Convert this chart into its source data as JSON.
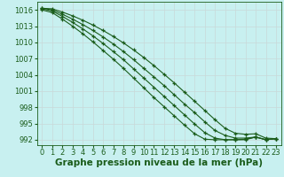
{
  "title": "Graphe pression niveau de la mer (hPa)",
  "bg_color": "#c8f0f0",
  "grid_color": "#aadddd",
  "line_color": "#1a5c1a",
  "marker_color": "#1a5c1a",
  "x_ticks": [
    0,
    1,
    2,
    3,
    4,
    5,
    6,
    7,
    8,
    9,
    10,
    11,
    12,
    13,
    14,
    15,
    16,
    17,
    18,
    19,
    20,
    21,
    22,
    23
  ],
  "y_ticks": [
    992,
    995,
    998,
    1001,
    1004,
    1007,
    1010,
    1013,
    1016
  ],
  "ylim": [
    991.0,
    1017.5
  ],
  "xlim": [
    -0.5,
    23.5
  ],
  "lines": [
    [
      1016.3,
      1016.2,
      1015.6,
      1014.9,
      1014.1,
      1013.2,
      1012.2,
      1011.1,
      1009.9,
      1008.6,
      1007.2,
      1005.7,
      1004.1,
      1002.5,
      1000.8,
      999.1,
      997.4,
      995.7,
      994.1,
      993.2,
      993.0,
      993.1,
      992.3,
      992.2
    ],
    [
      1016.3,
      1016.0,
      1015.2,
      1014.3,
      1013.3,
      1012.2,
      1011.0,
      1009.7,
      1008.3,
      1006.8,
      1005.2,
      1003.6,
      1002.0,
      1000.3,
      998.6,
      997.0,
      995.3,
      993.7,
      992.8,
      992.3,
      992.3,
      992.5,
      992.0,
      992.2
    ],
    [
      1016.2,
      1015.8,
      1014.8,
      1013.7,
      1012.5,
      1011.2,
      1009.8,
      1008.3,
      1006.8,
      1005.1,
      1003.4,
      1001.7,
      1000.0,
      998.3,
      996.6,
      994.9,
      993.3,
      992.3,
      992.0,
      992.0,
      992.1,
      992.5,
      992.0,
      992.2
    ],
    [
      1016.0,
      1015.5,
      1014.3,
      1013.0,
      1011.6,
      1010.1,
      1008.5,
      1006.9,
      1005.2,
      1003.4,
      1001.6,
      999.8,
      998.1,
      996.4,
      994.7,
      993.1,
      992.1,
      992.0,
      992.0,
      992.0,
      992.0,
      992.5,
      992.0,
      992.2
    ]
  ],
  "title_fontsize": 7.5,
  "tick_fontsize": 6,
  "tick_color": "#1a5c1a",
  "label_color": "#1a5c1a"
}
